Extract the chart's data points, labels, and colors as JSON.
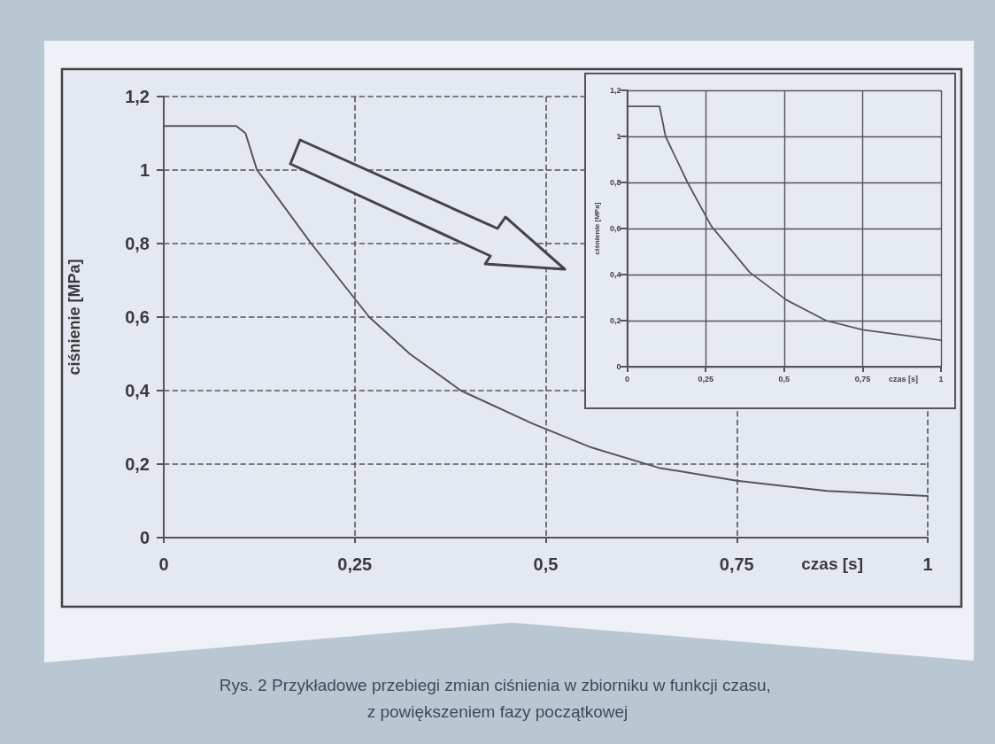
{
  "chart_data": [
    {
      "type": "line",
      "xlabel": "czas [s]",
      "ylabel": "ciśnienie [MPa]",
      "x": [
        0,
        0.095,
        0.107,
        0.122,
        0.133,
        0.193,
        0.25,
        0.269,
        0.322,
        0.389,
        0.483,
        0.56,
        0.648,
        0.75,
        0.868,
        1
      ],
      "series": [
        {
          "color": "#555555",
          "values": [
            1.12,
            1.12,
            1.1,
            1.0,
            0.97,
            0.8,
            0.65,
            0.6,
            0.5,
            0.4,
            0.31,
            0.245,
            0.19,
            0.155,
            0.127,
            0.113
          ]
        }
      ],
      "xlim": [
        0,
        1
      ],
      "xticks": [
        {
          "value": 0,
          "label": "0"
        },
        {
          "value": 0.25,
          "label": "0,25"
        },
        {
          "value": 0.5,
          "label": "0,5"
        },
        {
          "value": 0.75,
          "label": "0,75"
        },
        {
          "value": 1,
          "label": "1"
        }
      ],
      "ylim": [
        0,
        1.2
      ],
      "yticks": [
        {
          "value": 0,
          "label": "0"
        },
        {
          "value": 0.2,
          "label": "0,2"
        },
        {
          "value": 0.4,
          "label": "0,4"
        },
        {
          "value": 0.6,
          "label": "0,6"
        },
        {
          "value": 0.8,
          "label": "0,8"
        },
        {
          "value": 1,
          "label": "1"
        },
        {
          "value": 1.2,
          "label": "1,2"
        }
      ],
      "grid": true,
      "marker": "none",
      "line_style": "solid",
      "annotations": [
        "Rys. 2 Przykładowe przebiegi zmian ciśnienia w zbiorniku w funkcji czasu, z powiększeniem fazy początkowej"
      ]
    },
    {
      "type": "line",
      "xlabel": "czas [s]",
      "ylabel": "ciśnienie [MPa]",
      "x": [
        0,
        0.103,
        0.122,
        0.192,
        0.268,
        0.39,
        0.507,
        0.634,
        0.751,
        1
      ],
      "series": [
        {
          "color": "#555555",
          "values": [
            1.13,
            1.13,
            1.0,
            0.8,
            0.61,
            0.41,
            0.29,
            0.2,
            0.16,
            0.115
          ]
        }
      ],
      "xlim": [
        0,
        1
      ],
      "xticks": [
        {
          "value": 0,
          "label": "0"
        },
        {
          "value": 0.25,
          "label": "0,25"
        },
        {
          "value": 0.5,
          "label": "0,5"
        },
        {
          "value": 0.75,
          "label": "0,75"
        },
        {
          "value": 1,
          "label": "1"
        }
      ],
      "ylim": [
        0,
        1.2
      ],
      "yticks": [
        {
          "value": 0,
          "label": "0"
        },
        {
          "value": 0.2,
          "label": "0,2"
        },
        {
          "value": 0.4,
          "label": "0,4"
        },
        {
          "value": 0.6,
          "label": "0,6"
        },
        {
          "value": 0.8,
          "label": "0,8"
        },
        {
          "value": 1,
          "label": "1"
        },
        {
          "value": 1.2,
          "label": "1,2"
        }
      ],
      "grid": true,
      "marker": "none",
      "line_style": "solid"
    }
  ]
}
